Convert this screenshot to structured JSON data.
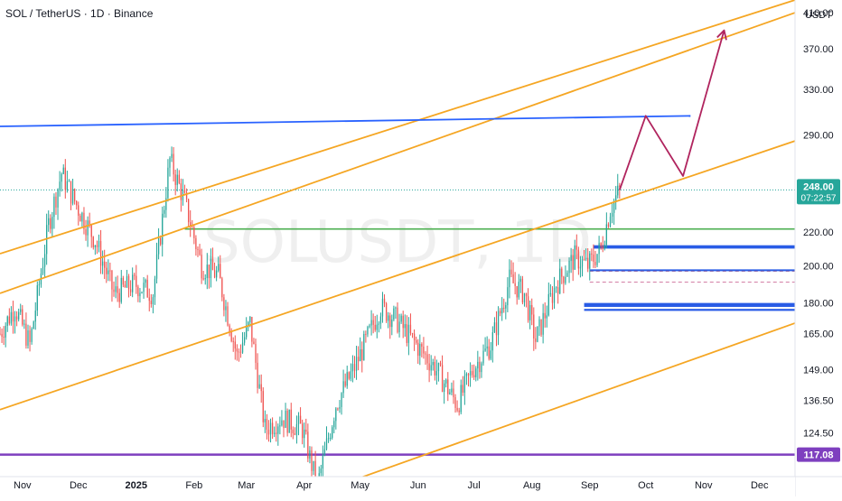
{
  "header": {
    "symbol_title": "SOL / TetherUS · 1D · Binance",
    "currency_unit": "USDT",
    "watermark": "SOLUSDT, 1D"
  },
  "colors": {
    "up": "#26a69a",
    "down": "#ef5350",
    "channel": "#f5a623",
    "resistance": "#2962ff",
    "support": "#1e53e5",
    "green_level": "#4caf50",
    "purple_level": "#7e3fbf",
    "projection": "#b0245e",
    "price_badge": "#26a69a",
    "support_badge": "#7e3fbf"
  },
  "chart_data": {
    "type": "candlestick",
    "title": "SOL / TetherUS · 1D · Binance",
    "y_scale": "log",
    "ylim": [
      110,
      425
    ],
    "xlim": [
      "2024-10-20",
      "2025-12-20"
    ],
    "y_ticks": [
      "410.00",
      "370.00",
      "330.00",
      "290.00",
      "248.00",
      "220.00",
      "200.00",
      "180.00",
      "165.00",
      "149.00",
      "136.50",
      "124.50",
      "117.08"
    ],
    "x_ticks": [
      {
        "label": "Nov",
        "date": "2024-11-01"
      },
      {
        "label": "Dec",
        "date": "2024-12-01"
      },
      {
        "label": "2025",
        "date": "2025-01-01"
      },
      {
        "label": "Feb",
        "date": "2025-02-01"
      },
      {
        "label": "Mar",
        "date": "2025-03-01"
      },
      {
        "label": "Apr",
        "date": "2025-04-01"
      },
      {
        "label": "May",
        "date": "2025-05-01"
      },
      {
        "label": "Jun",
        "date": "2025-06-01"
      },
      {
        "label": "Jul",
        "date": "2025-07-01"
      },
      {
        "label": "Aug",
        "date": "2025-08-01"
      },
      {
        "label": "Sep",
        "date": "2025-09-01"
      },
      {
        "label": "Oct",
        "date": "2025-10-01"
      },
      {
        "label": "Nov",
        "date": "2025-11-01"
      },
      {
        "label": "Dec",
        "date": "2025-12-01"
      }
    ],
    "current_price": {
      "value": "248.00",
      "countdown": "07:22:57"
    },
    "support_price": "117.08",
    "price_path": [
      [
        "2024-10-20",
        165
      ],
      [
        "2024-10-28",
        178
      ],
      [
        "2024-11-05",
        160
      ],
      [
        "2024-11-15",
        225
      ],
      [
        "2024-11-22",
        260
      ],
      [
        "2024-12-01",
        235
      ],
      [
        "2024-12-10",
        215
      ],
      [
        "2024-12-20",
        185
      ],
      [
        "2024-12-31",
        190
      ],
      [
        "2025-01-10",
        185
      ],
      [
        "2025-01-19",
        270
      ],
      [
        "2025-01-27",
        240
      ],
      [
        "2025-02-05",
        200
      ],
      [
        "2025-02-14",
        195
      ],
      [
        "2025-02-24",
        155
      ],
      [
        "2025-03-03",
        170
      ],
      [
        "2025-03-11",
        126
      ],
      [
        "2025-03-20",
        130
      ],
      [
        "2025-03-31",
        126
      ],
      [
        "2025-04-08",
        107
      ],
      [
        "2025-04-18",
        135
      ],
      [
        "2025-04-28",
        150
      ],
      [
        "2025-05-12",
        178
      ],
      [
        "2025-05-20",
        172
      ],
      [
        "2025-05-31",
        160
      ],
      [
        "2025-06-10",
        150
      ],
      [
        "2025-06-22",
        135
      ],
      [
        "2025-07-01",
        150
      ],
      [
        "2025-07-10",
        160
      ],
      [
        "2025-07-20",
        192
      ],
      [
        "2025-07-28",
        185
      ],
      [
        "2025-08-03",
        162
      ],
      [
        "2025-08-14",
        190
      ],
      [
        "2025-08-24",
        205
      ],
      [
        "2025-08-31",
        200
      ],
      [
        "2025-09-07",
        210
      ],
      [
        "2025-09-12",
        235
      ],
      [
        "2025-09-17",
        248
      ]
    ],
    "channel_lines": [
      {
        "start": [
          "2024-10-20",
          207
        ],
        "end": [
          "2025-12-20",
          425
        ]
      },
      {
        "start": [
          "2024-10-20",
          185
        ],
        "end": [
          "2025-12-20",
          410
        ]
      },
      {
        "start": [
          "2024-10-20",
          133
        ],
        "end": [
          "2025-12-20",
          285
        ]
      },
      {
        "start": [
          "2025-04-08",
          105
        ],
        "end": [
          "2025-12-20",
          170
        ]
      }
    ],
    "resistance_line": {
      "start": [
        "2024-10-20",
        297
      ],
      "end": [
        "2025-10-25",
        306
      ]
    },
    "level_lines": [
      {
        "price": 222,
        "from": "2025-01-27",
        "to": "2025-12-20",
        "color": "green"
      },
      {
        "price": 117.08,
        "from": "2024-10-20",
        "to": "2025-12-20",
        "color": "purple"
      }
    ],
    "zones": [
      {
        "top": 212,
        "bottom": 210,
        "from": "2025-09-03",
        "to": "2025-12-20"
      },
      {
        "top": 198,
        "bottom": 197,
        "from": "2025-09-01",
        "to": "2025-12-20"
      },
      {
        "top": 180,
        "bottom": 178,
        "from": "2025-08-29",
        "to": "2025-12-20"
      },
      {
        "top": 177,
        "bottom": 176,
        "from": "2025-08-29",
        "to": "2025-12-20"
      }
    ],
    "dashed_levels": [
      {
        "price": 197,
        "from": "2025-09-01",
        "to": "2025-12-20"
      },
      {
        "price": 191,
        "from": "2025-09-01",
        "to": "2025-12-20"
      }
    ],
    "projection_path": [
      [
        "2025-09-17",
        248
      ],
      [
        "2025-10-01",
        306
      ],
      [
        "2025-10-21",
        258
      ],
      [
        "2025-11-12",
        390
      ]
    ]
  }
}
